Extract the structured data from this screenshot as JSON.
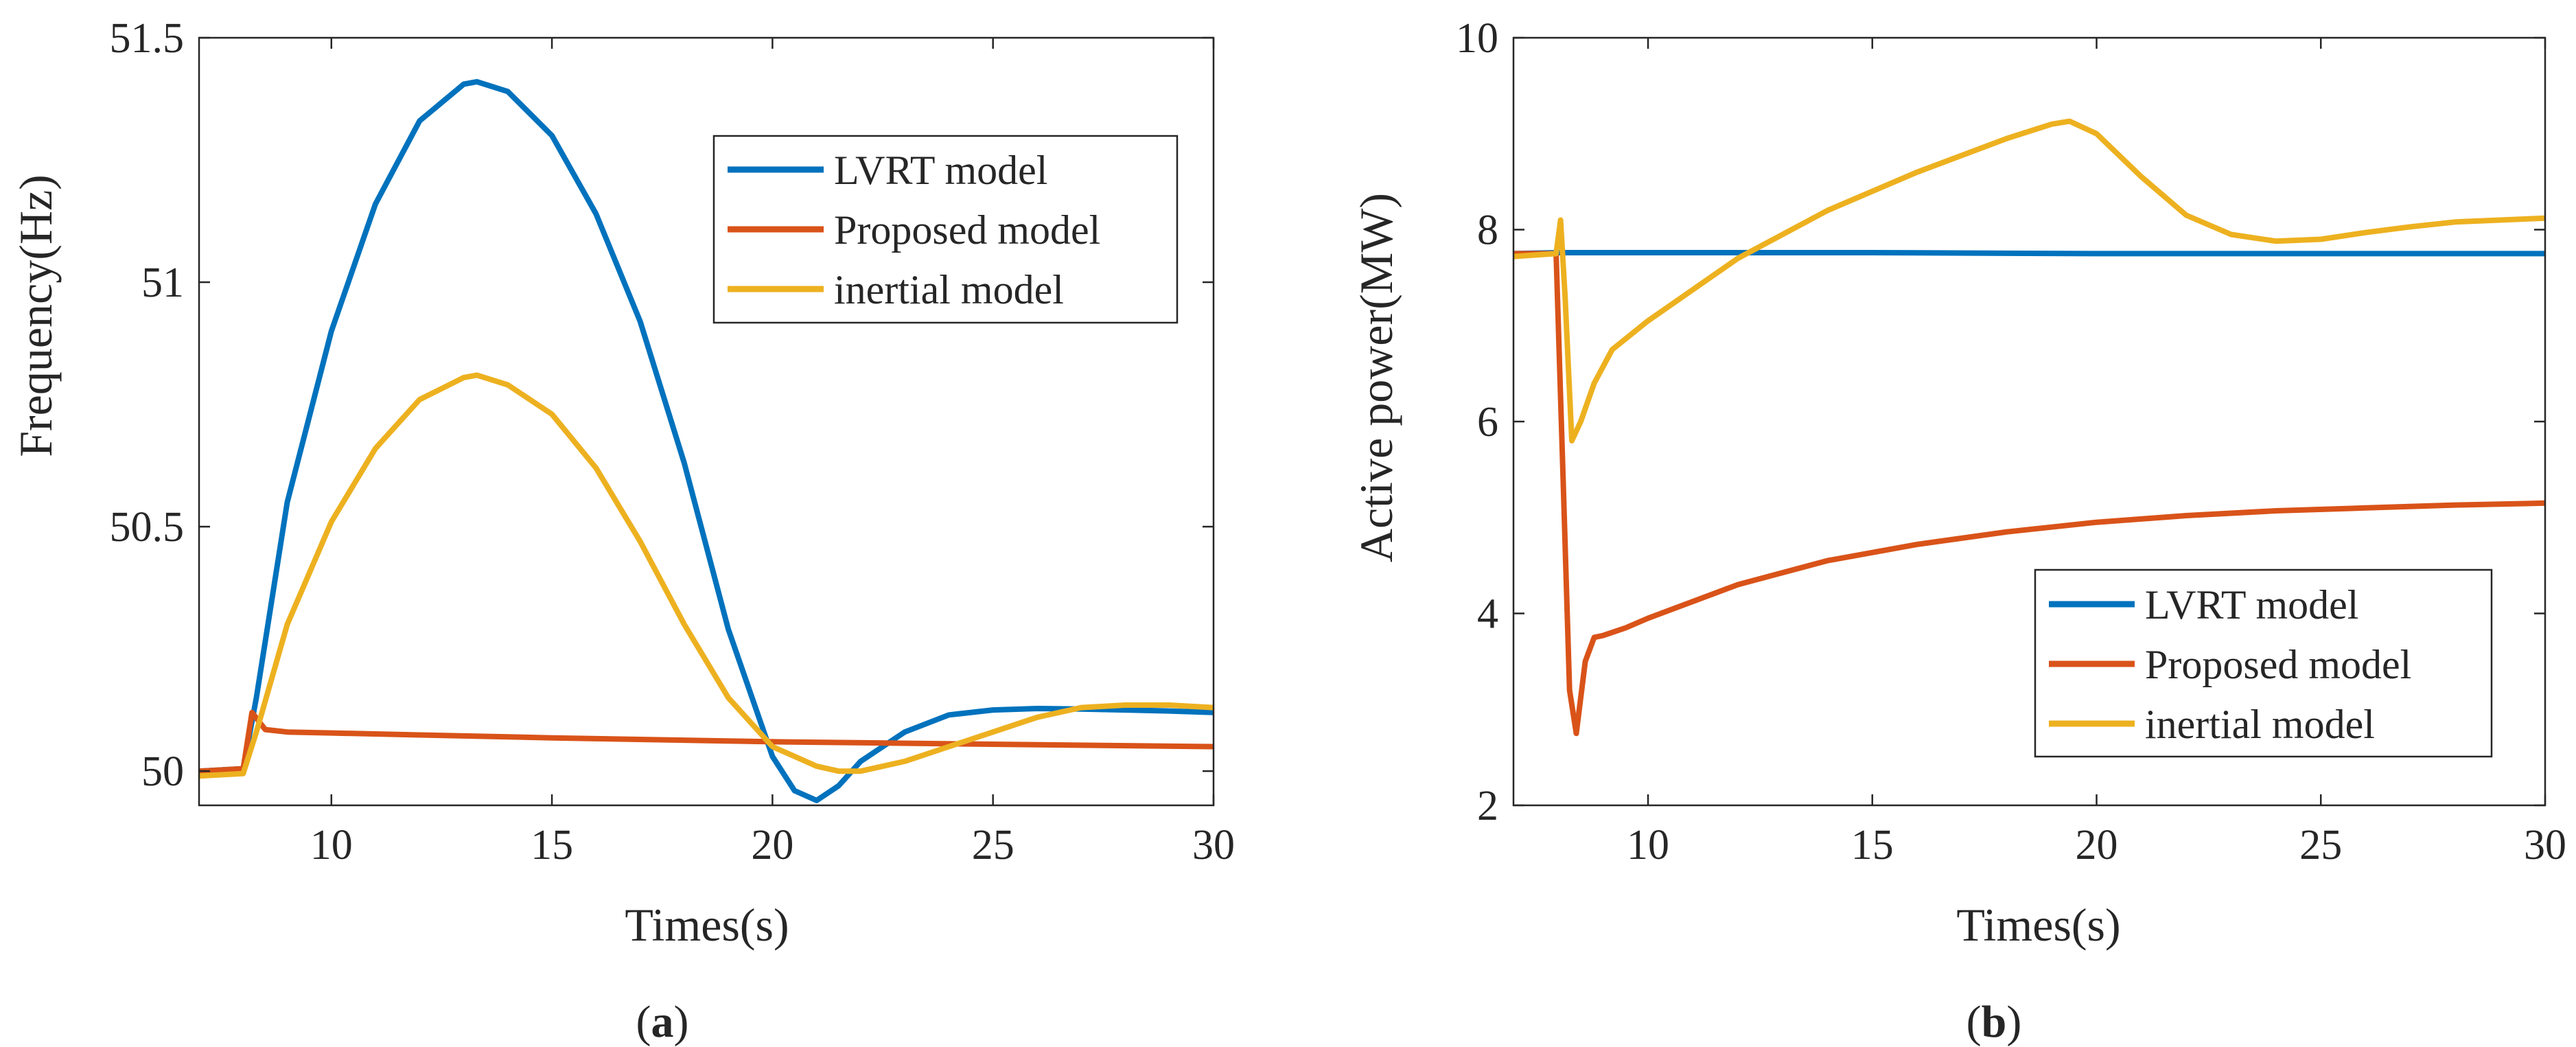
{
  "chart_data": [
    {
      "type": "line",
      "panel": "(a)",
      "caption_open": "(",
      "caption_letter": "a",
      "caption_close": ")",
      "xlabel": "Times(s)",
      "ylabel": "Frequency(Hz)",
      "xlim": [
        7,
        30
      ],
      "ylim": [
        49.93,
        51.5
      ],
      "xticks": [
        10,
        15,
        20,
        25,
        30
      ],
      "yticks": [
        50,
        50.5,
        51,
        51.5
      ],
      "ytick_labels": [
        "50",
        "50.5",
        "51",
        "51.5"
      ],
      "grid": false,
      "legend_position": "top-right",
      "series": [
        {
          "name": "LVRT model",
          "color": "#0072BD",
          "x": [
            7,
            8,
            8.3,
            9,
            10,
            11,
            12,
            13,
            13.3,
            14,
            15,
            16,
            17,
            18,
            19,
            20,
            20.5,
            21,
            21.5,
            22,
            23,
            24,
            25,
            26,
            27,
            28,
            29,
            30
          ],
          "y": [
            50,
            50.005,
            50.15,
            50.55,
            50.9,
            51.16,
            51.33,
            51.405,
            51.41,
            51.39,
            51.3,
            51.14,
            50.92,
            50.63,
            50.29,
            50.03,
            49.96,
            49.94,
            49.97,
            50.02,
            50.08,
            50.115,
            50.125,
            50.128,
            50.127,
            50.125,
            50.123,
            50.12
          ]
        },
        {
          "name": "Proposed model",
          "color": "#D95319",
          "x": [
            7,
            8,
            8.2,
            8.5,
            9,
            10,
            12,
            15,
            20,
            25,
            30
          ],
          "y": [
            50,
            50.005,
            50.12,
            50.085,
            50.08,
            50.078,
            50.074,
            50.068,
            50.06,
            50.055,
            50.05
          ]
        },
        {
          "name": "inertial model",
          "color": "#EDB120",
          "x": [
            7,
            8,
            8.3,
            9,
            10,
            11,
            12,
            13,
            13.3,
            14,
            15,
            16,
            17,
            18,
            19,
            20,
            21,
            21.5,
            22,
            23,
            24,
            25,
            26,
            27,
            28,
            29,
            30
          ],
          "y": [
            49.99,
            49.995,
            50.08,
            50.3,
            50.51,
            50.66,
            50.76,
            50.805,
            50.81,
            50.79,
            50.73,
            50.62,
            50.47,
            50.3,
            50.15,
            50.05,
            50.01,
            50.0,
            50.0,
            50.02,
            50.05,
            50.08,
            50.11,
            50.13,
            50.135,
            50.135,
            50.13
          ]
        }
      ]
    },
    {
      "type": "line",
      "panel": "(b)",
      "caption_open": "(",
      "caption_letter": "b",
      "caption_close": ")",
      "xlabel": "Times(s)",
      "ylabel": "Active power(MW)",
      "xlim": [
        7,
        30
      ],
      "ylim": [
        2,
        10
      ],
      "xticks": [
        10,
        15,
        20,
        25,
        30
      ],
      "yticks": [
        2,
        4,
        6,
        8,
        10
      ],
      "ytick_labels": [
        "2",
        "4",
        "6",
        "8",
        "10"
      ],
      "grid": false,
      "legend_position": "bottom-right",
      "series": [
        {
          "name": "LVRT model",
          "color": "#0072BD",
          "x": [
            7,
            8,
            10,
            15,
            20,
            25,
            30
          ],
          "y": [
            7.75,
            7.76,
            7.76,
            7.76,
            7.75,
            7.75,
            7.75
          ]
        },
        {
          "name": "Proposed model",
          "color": "#D95319",
          "x": [
            7,
            7.95,
            8.1,
            8.25,
            8.4,
            8.6,
            8.8,
            9,
            9.5,
            10,
            12,
            14,
            16,
            18,
            20,
            22,
            24,
            26,
            28,
            30
          ],
          "y": [
            7.75,
            7.75,
            5.5,
            3.2,
            2.75,
            3.5,
            3.75,
            3.77,
            3.85,
            3.95,
            4.3,
            4.55,
            4.72,
            4.85,
            4.95,
            5.02,
            5.07,
            5.1,
            5.13,
            5.15
          ]
        },
        {
          "name": "inertial model",
          "color": "#EDB120",
          "x": [
            7,
            7.95,
            8.05,
            8.15,
            8.3,
            8.5,
            8.8,
            9.2,
            10,
            12,
            14,
            16,
            18,
            19,
            19.4,
            20,
            21,
            22,
            23,
            24,
            25,
            26,
            27,
            28,
            29,
            30
          ],
          "y": [
            7.72,
            7.75,
            8.1,
            7.3,
            5.8,
            6.0,
            6.4,
            6.75,
            7.05,
            7.7,
            8.2,
            8.6,
            8.95,
            9.1,
            9.13,
            9.0,
            8.55,
            8.15,
            7.95,
            7.88,
            7.9,
            7.97,
            8.03,
            8.08,
            8.1,
            8.12
          ]
        }
      ]
    }
  ]
}
